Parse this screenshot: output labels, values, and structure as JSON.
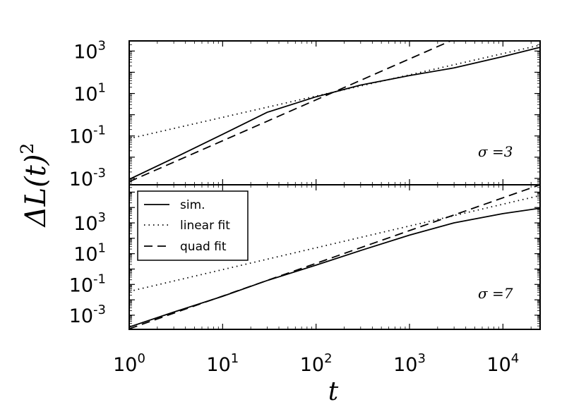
{
  "chart_data": [
    {
      "type": "line",
      "panel": "top",
      "annotation": "σ =3",
      "x_scale": "log",
      "y_scale": "log",
      "xlim": [
        1,
        25000
      ],
      "ylim": [
        0.0005,
        3000
      ],
      "ytick_values": [
        0.001,
        0.1,
        10,
        1000
      ],
      "ytick_labels": [
        {
          "base": "10",
          "exp": "-3"
        },
        {
          "base": "10",
          "exp": "-1"
        },
        {
          "base": "10",
          "exp": "1"
        },
        {
          "base": "10",
          "exp": "3"
        }
      ],
      "series": [
        {
          "name": "sim.",
          "style": "solid",
          "x": [
            1,
            3,
            10,
            30,
            100,
            300,
            1000,
            3000,
            10000,
            25000
          ],
          "y": [
            0.0009,
            0.009,
            0.12,
            1.3,
            7,
            25,
            70,
            160,
            550,
            1500
          ]
        },
        {
          "name": "linear fit",
          "style": "dotted",
          "x": [
            1,
            25000
          ],
          "y": [
            0.075,
            1900
          ]
        },
        {
          "name": "quad fit",
          "style": "dashed",
          "x": [
            1,
            3200
          ],
          "y": [
            0.0007,
            4000
          ]
        }
      ]
    },
    {
      "type": "line",
      "panel": "bottom",
      "annotation": "σ =7",
      "x_scale": "log",
      "y_scale": "log",
      "xlim": [
        1,
        25000
      ],
      "ylim": [
        0.00012,
        300000
      ],
      "ytick_values": [
        0.001,
        0.1,
        10,
        1000
      ],
      "ytick_labels": [
        {
          "base": "10",
          "exp": "-3"
        },
        {
          "base": "10",
          "exp": "-1"
        },
        {
          "base": "10",
          "exp": "1"
        },
        {
          "base": "10",
          "exp": "3"
        }
      ],
      "xtick_values": [
        1,
        10,
        100,
        1000,
        10000
      ],
      "xtick_labels": [
        {
          "base": "10",
          "exp": "0"
        },
        {
          "base": "10",
          "exp": "1"
        },
        {
          "base": "10",
          "exp": "2"
        },
        {
          "base": "10",
          "exp": "3"
        },
        {
          "base": "10",
          "exp": "4"
        }
      ],
      "series": [
        {
          "name": "sim.",
          "style": "solid",
          "x": [
            1,
            3,
            10,
            30,
            100,
            300,
            1000,
            3000,
            10000,
            25000
          ],
          "y": [
            0.00017,
            0.0016,
            0.017,
            0.18,
            1.8,
            16,
            160,
            1000,
            4000,
            9000
          ]
        },
        {
          "name": "linear fit",
          "style": "dotted",
          "x": [
            1,
            25000
          ],
          "y": [
            0.035,
            60000
          ]
        },
        {
          "name": "quad fit",
          "style": "dashed",
          "x": [
            1,
            25000
          ],
          "y": [
            0.00013,
            300000
          ]
        }
      ]
    }
  ],
  "xlabel": "t",
  "ylabel": {
    "main": "ΔL(t)",
    "exp": "2"
  },
  "legend": {
    "placement": "upper-left (bottom panel)",
    "entries": [
      {
        "label": "sim.",
        "style": "solid"
      },
      {
        "label": "linear fit",
        "style": "dotted"
      },
      {
        "label": "quad fit",
        "style": "dashed"
      }
    ]
  }
}
